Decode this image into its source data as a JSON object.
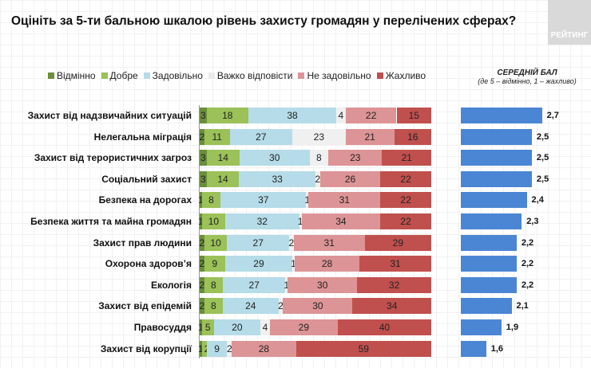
{
  "title": "Оцініть за 5-ти бальною шкалою рівень захисту громадян у перелічених сферах?",
  "logo_text": "РЕЙТИНГ",
  "chart_data": [
    {
      "type": "bar",
      "orientation": "horizontal-stacked",
      "title": "Оцініть за 5-ти бальною шкалою рівень захисту громадян у перелічених сферах?",
      "legend_placement": "top",
      "categories": [
        "Захист від надзвичайних ситуацій",
        "Нелегальна міграція",
        "Захист від терористичних загроз",
        "Соціальний захист",
        "Безпека на дорогах",
        "Безпека життя та майна громадян",
        "Захист прав людини",
        "Охорона здоров’я",
        "Екологія",
        "Захист від епідемій",
        "Правосуддя",
        "Захист від корупції"
      ],
      "series": [
        {
          "name": "Відмінно",
          "color": "#6a8f3a",
          "values": [
            3,
            2,
            3,
            3,
            1,
            1,
            2,
            2,
            2,
            2,
            1,
            1
          ]
        },
        {
          "name": "Добре",
          "color": "#9bc158",
          "values": [
            18,
            11,
            14,
            14,
            8,
            10,
            10,
            9,
            8,
            8,
            5,
            2
          ]
        },
        {
          "name": "Задовільно",
          "color": "#b5dce8",
          "values": [
            38,
            27,
            30,
            33,
            37,
            32,
            27,
            29,
            27,
            24,
            20,
            9
          ]
        },
        {
          "name": "Важко відповісти",
          "color": "#f0f0f0",
          "values": [
            4,
            23,
            8,
            2,
            1,
            1,
            2,
            1,
            1,
            2,
            4,
            2
          ]
        },
        {
          "name": "Не задовільно",
          "color": "#dd9496",
          "values": [
            22,
            21,
            23,
            26,
            31,
            34,
            31,
            28,
            30,
            30,
            29,
            28
          ]
        },
        {
          "name": "Жахливо",
          "color": "#c0504d",
          "values": [
            15,
            16,
            21,
            22,
            22,
            22,
            29,
            31,
            32,
            34,
            40,
            59
          ]
        }
      ]
    },
    {
      "type": "bar",
      "orientation": "horizontal",
      "title": "СЕРЕДНІЙ БАЛ",
      "subtitle": "(де 5 – відмінно, 1 – жахливо)",
      "color": "#4a86d4",
      "categories": [
        "Захист від надзвичайних ситуацій",
        "Нелегальна міграція",
        "Захист від терористичних загроз",
        "Соціальний захист",
        "Безпека на дорогах",
        "Безпека життя та майна громадян",
        "Захист прав людини",
        "Охорона здоров’я",
        "Екологія",
        "Захист від епідемій",
        "Правосуддя",
        "Захист від корупції"
      ],
      "values": [
        2.7,
        2.5,
        2.5,
        2.5,
        2.4,
        2.3,
        2.2,
        2.2,
        2.2,
        2.1,
        1.9,
        1.6
      ],
      "labels": [
        "2,7",
        "2,5",
        "2,5",
        "2,5",
        "2,4",
        "2,3",
        "2,2",
        "2,2",
        "2,2",
        "2,1",
        "1,9",
        "1,6"
      ]
    }
  ]
}
